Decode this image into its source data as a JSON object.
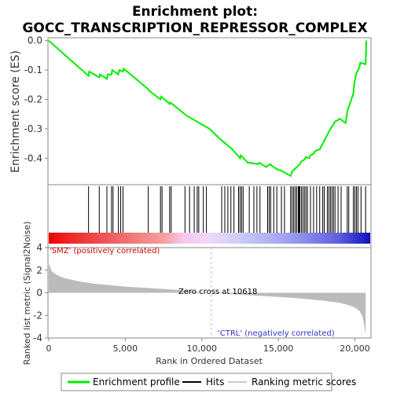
{
  "chart_data": {
    "type": "line",
    "title_line1": "Enrichment plot:",
    "title_line2": "GOCC_TRANSCRIPTION_REPRESSOR_COMPLEX",
    "ylabel_top": "Enrichment score (ES)",
    "ylabel_bottom": "Ranked list metric (Signal2Noise)",
    "xlabel": "Rank in Ordered Dataset",
    "top_yticks": [
      "0.0",
      "-0.1",
      "-0.2",
      "-0.3",
      "-0.4"
    ],
    "top_ylim": [
      -0.49,
      0.01
    ],
    "bottom_yticks": [
      "4",
      "2",
      "0",
      "-2",
      "-4"
    ],
    "bottom_ylim": [
      -4,
      4
    ],
    "xticks": [
      "0",
      "5,000",
      "10,000",
      "15,000",
      "20,000"
    ],
    "xlim": [
      0,
      21000
    ],
    "series": [
      {
        "name": "Enrichment profile",
        "color": "#00ee00",
        "x": [
          0,
          2600,
          2650,
          3300,
          3350,
          3800,
          3850,
          4100,
          4150,
          4550,
          4600,
          4850,
          4900,
          6500,
          6550,
          7300,
          7350,
          7900,
          7950,
          9000,
          10500,
          11200,
          12000,
          12500,
          12550,
          13000,
          13700,
          13750,
          14200,
          14300,
          14500,
          14550,
          15000,
          15100,
          15800,
          15900,
          16100,
          16200,
          16400,
          16500,
          16700,
          16800,
          17000,
          17100,
          17300,
          17400,
          17700,
          17800,
          18000,
          18100,
          18300,
          18400,
          18600,
          18700,
          18900,
          19000,
          19400,
          19500,
          19900,
          19950,
          20050,
          20100,
          20300,
          20350,
          20700,
          20750
        ],
        "y": [
          0.0,
          -0.12,
          -0.105,
          -0.125,
          -0.115,
          -0.13,
          -0.115,
          -0.115,
          -0.1,
          -0.115,
          -0.1,
          -0.105,
          -0.095,
          -0.165,
          -0.17,
          -0.2,
          -0.19,
          -0.215,
          -0.21,
          -0.255,
          -0.3,
          -0.335,
          -0.37,
          -0.4,
          -0.39,
          -0.415,
          -0.42,
          -0.415,
          -0.43,
          -0.425,
          -0.42,
          -0.425,
          -0.44,
          -0.44,
          -0.46,
          -0.445,
          -0.435,
          -0.43,
          -0.42,
          -0.41,
          -0.405,
          -0.395,
          -0.4,
          -0.39,
          -0.385,
          -0.375,
          -0.37,
          -0.36,
          -0.34,
          -0.33,
          -0.31,
          -0.3,
          -0.285,
          -0.275,
          -0.27,
          -0.265,
          -0.28,
          -0.24,
          -0.18,
          -0.15,
          -0.12,
          -0.11,
          -0.09,
          -0.075,
          -0.08,
          0.0
        ]
      }
    ],
    "hits": [
      2600,
      3300,
      3800,
      4100,
      4200,
      4550,
      4700,
      4850,
      6500,
      7300,
      7400,
      7900,
      8000,
      8900,
      9200,
      9500,
      9700,
      9800,
      10100,
      10300,
      11300,
      11500,
      11700,
      11900,
      12100,
      12400,
      12500,
      12600,
      12700,
      13100,
      13400,
      13600,
      13800,
      14300,
      14400,
      14500,
      14700,
      14900,
      15200,
      15400,
      15800,
      15900,
      16000,
      16100,
      16200,
      16300,
      16350,
      16400,
      16500,
      16600,
      16700,
      16800,
      16900,
      17100,
      17300,
      17500,
      17700,
      17900,
      18000,
      18200,
      18300,
      18400,
      18500,
      18600,
      18700,
      18900,
      19100,
      19500,
      19600,
      19900,
      20000,
      20100,
      20200,
      20400,
      20700
    ],
    "annotations": {
      "pos_label": "'SMZ' (positively correlated)",
      "neg_label": "'CTRL' (negatively correlated)",
      "zero_cross": "Zero cross at 10618"
    },
    "zero_cross_rank": 10618,
    "metric_profile": {
      "x": [
        0,
        200,
        500,
        1000,
        2000,
        3000,
        5000,
        8000,
        10618,
        13000,
        16000,
        18000,
        19000,
        19500,
        20000,
        20300,
        20500,
        20600,
        20700
      ],
      "y": [
        2.6,
        1.9,
        1.6,
        1.3,
        1.0,
        0.8,
        0.55,
        0.3,
        0.0,
        -0.2,
        -0.45,
        -0.7,
        -0.9,
        -1.05,
        -1.3,
        -1.6,
        -2.1,
        -2.8,
        -3.7
      ]
    },
    "legend": [
      {
        "label": "Enrichment profile",
        "color": "#00ee00",
        "kind": "line"
      },
      {
        "label": "Hits",
        "color": "#000000",
        "kind": "line"
      },
      {
        "label": "Ranking metric scores",
        "color": "#cccccc",
        "kind": "line"
      }
    ],
    "colors": {
      "axis": "#888888",
      "fill_metric": "#bbbbbb",
      "pos_text": "#cc0000",
      "neg_text": "#3333cc",
      "zero_line": "#bbbbbb"
    }
  }
}
